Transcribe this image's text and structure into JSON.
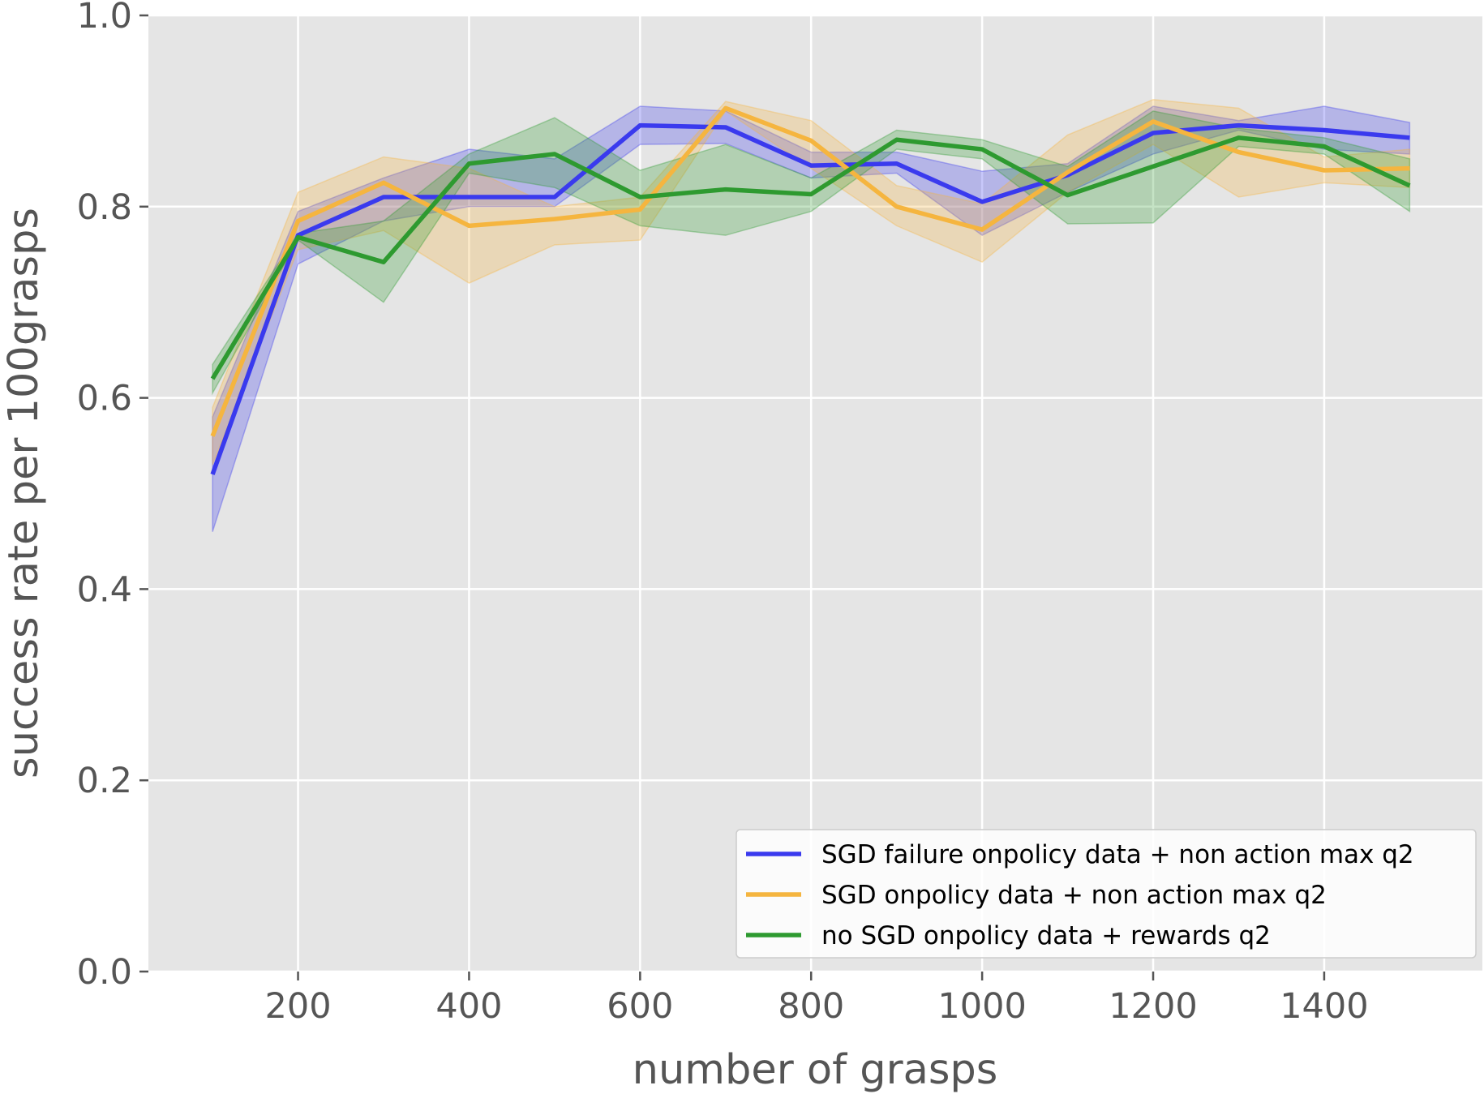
{
  "chart_data": {
    "type": "line",
    "title": "",
    "xlabel": "number of grasps",
    "ylabel": "success rate per 100grasps",
    "xlim": [
      25,
      1585
    ],
    "ylim": [
      0.0,
      1.0
    ],
    "x_ticks": [
      200,
      400,
      600,
      800,
      1000,
      1200,
      1400
    ],
    "y_ticks": [
      0.0,
      0.2,
      0.4,
      0.6,
      0.8,
      1.0
    ],
    "x_tick_labels": [
      "200",
      "400",
      "600",
      "800",
      "1000",
      "1200",
      "1400"
    ],
    "y_tick_labels": [
      "0.0",
      "0.2",
      "0.4",
      "0.6",
      "0.8",
      "1.0"
    ],
    "grid": true,
    "legend_position": "lower-right",
    "x": [
      100,
      200,
      300,
      400,
      500,
      600,
      700,
      800,
      900,
      1000,
      1100,
      1200,
      1300,
      1400,
      1500
    ],
    "series": [
      {
        "name": "SGD failure onpolicy data + non action max q2",
        "color": "#3a3aee",
        "values": [
          0.52,
          0.77,
          0.81,
          0.81,
          0.81,
          0.885,
          0.883,
          0.843,
          0.845,
          0.805,
          0.833,
          0.877,
          0.885,
          0.88,
          0.872
        ],
        "lower": [
          0.46,
          0.74,
          0.785,
          0.8,
          0.8,
          0.865,
          0.866,
          0.83,
          0.835,
          0.77,
          0.815,
          0.855,
          0.88,
          0.86,
          0.855
        ],
        "upper": [
          0.58,
          0.795,
          0.83,
          0.86,
          0.85,
          0.905,
          0.9,
          0.857,
          0.857,
          0.837,
          0.845,
          0.905,
          0.89,
          0.905,
          0.888
        ]
      },
      {
        "name": "SGD onpolicy data + non action max q2",
        "color": "#f5b53f",
        "values": [
          0.56,
          0.785,
          0.825,
          0.78,
          0.787,
          0.797,
          0.903,
          0.869,
          0.8,
          0.776,
          0.836,
          0.889,
          0.857,
          0.838,
          0.84
        ],
        "lower": [
          0.53,
          0.755,
          0.775,
          0.72,
          0.76,
          0.765,
          0.9,
          0.84,
          0.78,
          0.742,
          0.815,
          0.865,
          0.81,
          0.825,
          0.82
        ],
        "upper": [
          0.59,
          0.815,
          0.852,
          0.84,
          0.8,
          0.81,
          0.91,
          0.89,
          0.822,
          0.803,
          0.875,
          0.912,
          0.903,
          0.852,
          0.86
        ]
      },
      {
        "name": "no SGD onpolicy data + rewards q2",
        "color": "#2e9a30",
        "values": [
          0.62,
          0.768,
          0.742,
          0.845,
          0.855,
          0.81,
          0.818,
          0.813,
          0.87,
          0.86,
          0.812,
          0.842,
          0.872,
          0.863,
          0.822
        ],
        "lower": [
          0.605,
          0.765,
          0.7,
          0.835,
          0.82,
          0.78,
          0.77,
          0.795,
          0.86,
          0.85,
          0.782,
          0.783,
          0.863,
          0.855,
          0.795
        ],
        "upper": [
          0.635,
          0.772,
          0.785,
          0.855,
          0.893,
          0.838,
          0.865,
          0.83,
          0.88,
          0.87,
          0.842,
          0.9,
          0.882,
          0.872,
          0.85
        ]
      }
    ]
  }
}
